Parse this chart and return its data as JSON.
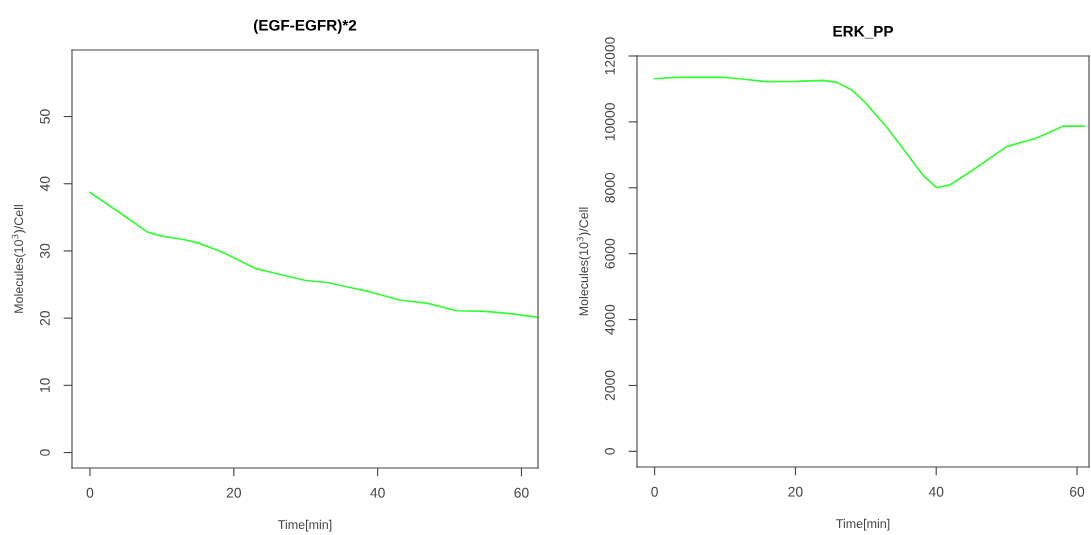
{
  "chart_data": [
    {
      "type": "line",
      "title": "(EGF-EGFR)*2",
      "xlabel": "Time[min]",
      "ylabel": "Molecules(10$^{3}$)/Cell",
      "xlim": [
        -2.5,
        62.3
      ],
      "ylim": [
        -2.3,
        59.9
      ],
      "xticks": [
        0,
        20,
        40,
        60
      ],
      "yticks": [
        0,
        10,
        20,
        30,
        40,
        50
      ],
      "grid": false,
      "legend": false,
      "x": [
        0,
        4,
        8,
        10,
        13,
        15,
        18,
        20,
        23,
        26,
        30,
        33,
        36,
        39,
        43,
        47,
        51,
        55,
        59,
        62.3
      ],
      "series": [
        {
          "color": "#33ff33",
          "values": [
            38.7,
            35.8,
            32.8,
            32.2,
            31.7,
            31.2,
            30.0,
            29.0,
            27.4,
            26.6,
            25.6,
            25.3,
            24.6,
            23.9,
            22.7,
            22.2,
            21.1,
            21.0,
            20.6,
            20.1
          ]
        }
      ]
    },
    {
      "type": "line",
      "title": "ERK_PP",
      "xlabel": "Time[min]",
      "ylabel": "Molecules(10$^{3}$)/Cell",
      "xlim": [
        -2.5,
        61.7
      ],
      "ylim": [
        -475,
        12000
      ],
      "xticks": [
        0,
        20,
        40,
        60
      ],
      "yticks": [
        0,
        2000,
        4000,
        6000,
        8000,
        10000,
        12000
      ],
      "grid": false,
      "legend": false,
      "x": [
        0,
        3,
        10,
        12,
        16,
        20,
        24,
        26,
        28,
        30,
        33,
        36,
        38,
        40,
        42,
        45,
        50,
        54,
        58,
        61
      ],
      "series": [
        {
          "color": "#33ff33",
          "values": [
            11310,
            11350,
            11350,
            11310,
            11220,
            11230,
            11260,
            11190,
            10970,
            10570,
            9830,
            8990,
            8410,
            8010,
            8090,
            8510,
            9250,
            9490,
            9870,
            9870
          ]
        }
      ]
    }
  ]
}
